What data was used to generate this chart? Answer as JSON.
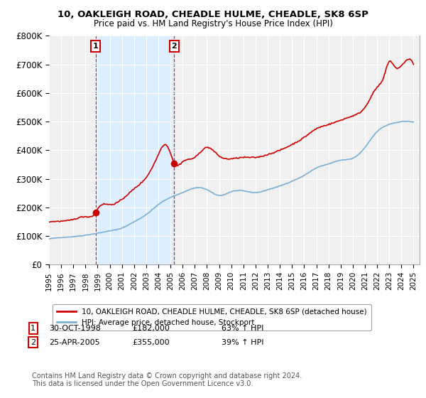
{
  "title1": "10, OAKLEIGH ROAD, CHEADLE HULME, CHEADLE, SK8 6SP",
  "title2": "Price paid vs. HM Land Registry's House Price Index (HPI)",
  "ylim": [
    0,
    800000
  ],
  "yticks": [
    0,
    100000,
    200000,
    300000,
    400000,
    500000,
    600000,
    700000,
    800000
  ],
  "ytick_labels": [
    "£0",
    "£100K",
    "£200K",
    "£300K",
    "£400K",
    "£500K",
    "£600K",
    "£700K",
    "£800K"
  ],
  "xlim_start": 1995,
  "xlim_end": 2025.5,
  "purchase1_x": 1998.83,
  "purchase1_price": 182000,
  "purchase1_label": "1",
  "purchase2_x": 2005.31,
  "purchase2_price": 355000,
  "purchase2_label": "2",
  "legend_line1": "10, OAKLEIGH ROAD, CHEADLE HULME, CHEADLE, SK8 6SP (detached house)",
  "legend_line2": "HPI: Average price, detached house, Stockport",
  "sale1_date": "30-OCT-1998",
  "sale1_price": "£182,000",
  "sale1_pct": "63% ↑ HPI",
  "sale2_date": "25-APR-2005",
  "sale2_price": "£355,000",
  "sale2_pct": "39% ↑ HPI",
  "footer": "Contains HM Land Registry data © Crown copyright and database right 2024.\nThis data is licensed under the Open Government Licence v3.0.",
  "line_color_red": "#cc0000",
  "line_color_blue": "#7bafd4",
  "shade_color": "#ddeeff",
  "plot_bg": "#f0f0f0",
  "grid_color": "#ffffff",
  "background_color": "#ffffff"
}
